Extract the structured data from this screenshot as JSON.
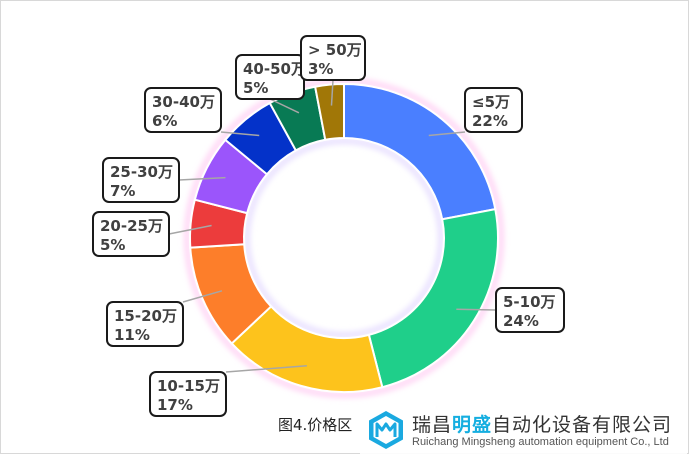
{
  "chart_data": {
    "type": "pie",
    "variant": "donut",
    "categories": [
      "≤5万",
      "5-10万",
      "10-15万",
      "15-20万",
      "20-25万",
      "25-30万",
      "30-40万",
      "40-50万",
      "> 50万"
    ],
    "values": [
      22,
      24,
      17,
      11,
      5,
      7,
      6,
      5,
      3
    ],
    "value_labels": [
      "22%",
      "24%",
      "17%",
      "11%",
      "5%",
      "7%",
      "6%",
      "5%",
      "3%"
    ],
    "colors": [
      "#4a7fff",
      "#1fcf8a",
      "#fdc31c",
      "#fd7e2a",
      "#ec3c3c",
      "#9b55fb",
      "#0432c9",
      "#087a54",
      "#a17707"
    ],
    "legend": "none"
  },
  "caption": "图4.价格区",
  "watermark": {
    "name_pre": "瑞昌",
    "name_highlight": "明盛",
    "name_post": "自动化设备有限公司",
    "english": "Ruichang Mingsheng automation equipment Co., Ltd"
  }
}
